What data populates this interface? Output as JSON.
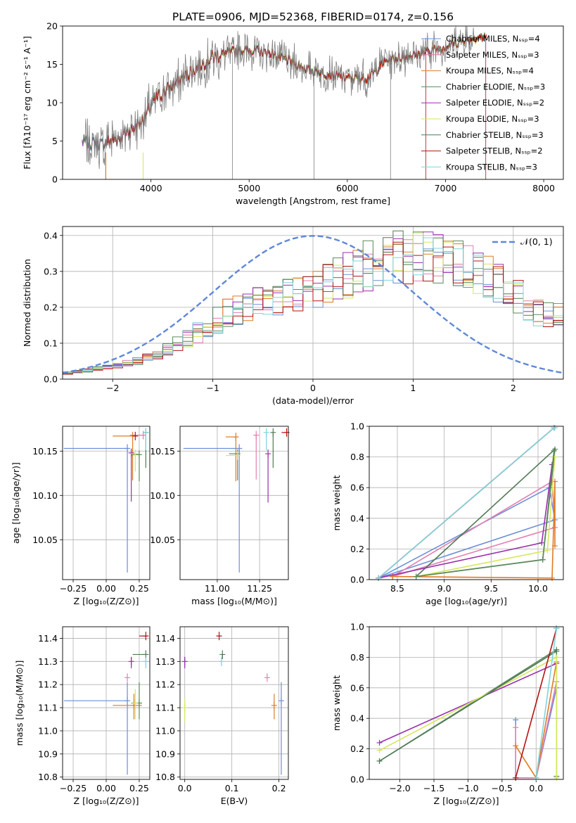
{
  "colors": {
    "blue": "#6a8fd8",
    "orange": "#e07b24",
    "green": "#5b8a5b",
    "purple": "#9b2fae",
    "yellow": "#d4e85a",
    "pink": "#e27fb0",
    "darkgreen": "#4f7a55",
    "red": "#b31414",
    "cyan": "#7fd4dc",
    "data": "#808080",
    "gauss": "#5f88d9",
    "grid": "#b0b0b0"
  },
  "chart_data": [
    {
      "id": "spectrum",
      "type": "line",
      "title": "PLATE=0906, MJD=52368, FIBERID=0174, z=0.156",
      "xlabel": "wavelength [Angstrom, rest frame]",
      "ylabel": "Flux [fλ10⁻¹⁷ erg cm⁻² s⁻¹ A⁻¹]",
      "xlim": [
        3100,
        8200
      ],
      "ylim": [
        0,
        20
      ],
      "xticks": [
        4000,
        5000,
        6000,
        7000,
        8000
      ],
      "yticks": [
        0,
        5,
        10,
        15,
        20
      ],
      "grid": false,
      "legend_position": "right",
      "legend": [
        {
          "label": "Chabrier MILES, Nₛₛₚ=4",
          "color": "#6a8fd8"
        },
        {
          "label": "Salpeter MILES, Nₛₛₚ=3",
          "color": "#e27fb0"
        },
        {
          "label": "Kroupa MILES, Nₛₛₚ=4",
          "color": "#e07b24"
        },
        {
          "label": "Chabrier ELODIE, Nₛₛₚ=3",
          "color": "#5b8a5b"
        },
        {
          "label": "Salpeter ELODIE, Nₛₛₚ=2",
          "color": "#9b2fae"
        },
        {
          "label": "Kroupa ELODIE, Nₛₛₚ=3",
          "color": "#d4e85a"
        },
        {
          "label": "Chabrier STELIB, Nₛₛₚ=3",
          "color": "#4f7a55"
        },
        {
          "label": "Salpeter STELIB, Nₛₛₚ=2",
          "color": "#b31414"
        },
        {
          "label": "Kroupa STELIB, Nₛₛₚ=3",
          "color": "#7fd4dc"
        }
      ],
      "continuum": [
        [
          3300,
          4.9
        ],
        [
          3500,
          4.6
        ],
        [
          3700,
          5.6
        ],
        [
          3900,
          7.5
        ],
        [
          4050,
          10.5
        ],
        [
          4200,
          12
        ],
        [
          4400,
          14
        ],
        [
          4600,
          15.8
        ],
        [
          4800,
          16.6
        ],
        [
          5000,
          16.9
        ],
        [
          5200,
          16.5
        ],
        [
          5400,
          15.5
        ],
        [
          5600,
          14.3
        ],
        [
          5800,
          13.7
        ],
        [
          6000,
          13.2
        ],
        [
          6200,
          13.2
        ],
        [
          6400,
          15.5
        ],
        [
          6600,
          16
        ],
        [
          6800,
          16.6
        ],
        [
          7000,
          17.3
        ],
        [
          7200,
          18.2
        ],
        [
          7400,
          18.6
        ]
      ]
    },
    {
      "id": "residuals",
      "type": "area",
      "xlabel": "(data-model)/error",
      "ylabel": "Normed distribution",
      "xlim": [
        -2.5,
        2.5
      ],
      "ylim": [
        0,
        0.425
      ],
      "xticks": [
        -2,
        -1,
        0,
        1,
        2
      ],
      "yticks": [
        0.0,
        0.1,
        0.2,
        0.3,
        0.4
      ],
      "grid": true,
      "legend_position": "top-right",
      "gauss_label": "𝒩(0, 1)",
      "envelope": [
        [
          -2.5,
          0.015
        ],
        [
          -2.1,
          0.03
        ],
        [
          -1.6,
          0.06
        ],
        [
          -1.2,
          0.12
        ],
        [
          -0.8,
          0.19
        ],
        [
          -0.4,
          0.22
        ],
        [
          0.0,
          0.25
        ],
        [
          0.3,
          0.28
        ],
        [
          0.6,
          0.32
        ],
        [
          0.9,
          0.34
        ],
        [
          1.2,
          0.335
        ],
        [
          1.6,
          0.31
        ],
        [
          2.0,
          0.24
        ],
        [
          2.3,
          0.18
        ],
        [
          2.5,
          0.17
        ]
      ]
    },
    {
      "id": "age-vs-Z",
      "type": "scatter",
      "xlabel": "Z [log₁₀(Z/Z⊙)]",
      "ylabel": "age  [log₁₀(age/yr)]",
      "xlim": [
        -0.33,
        0.33
      ],
      "ylim": [
        10.005,
        10.178
      ],
      "xticks": [
        -0.25,
        0.0,
        0.25
      ],
      "yticks": [
        10.05,
        10.1,
        10.15
      ],
      "grid": true,
      "points": [
        {
          "color": "#6a8fd8",
          "x": 0.16,
          "xerr": [
            0.48,
            0.0
          ],
          "y": 10.153,
          "yerr": [
            0.14,
            0.0
          ]
        },
        {
          "color": "#e27fb0",
          "x": 0.28,
          "xerr": [
            0.1,
            0.0
          ],
          "y": 10.168,
          "yerr": [
            0.0,
            0.0
          ]
        },
        {
          "color": "#e07b24",
          "x": 0.2,
          "xerr": [
            0.15,
            0.0
          ],
          "y": 10.167,
          "yerr": [
            0.05,
            0.0
          ]
        },
        {
          "color": "#5b8a5b",
          "x": 0.25,
          "xerr": [
            0.06,
            0.0
          ],
          "y": 10.146,
          "yerr": [
            0.03,
            0.0
          ]
        },
        {
          "color": "#9b2fae",
          "x": 0.19,
          "xerr": [
            0.0,
            0.0
          ],
          "y": 10.148,
          "yerr": [
            0.055,
            0.0
          ]
        },
        {
          "color": "#d4e85a",
          "x": 0.22,
          "xerr": [
            0.04,
            0.0
          ],
          "y": 10.147,
          "yerr": [
            0.02,
            0.0
          ]
        },
        {
          "color": "#4f7a55",
          "x": 0.3,
          "xerr": [
            0.0,
            0.0
          ],
          "y": 10.171,
          "yerr": [
            0.04,
            0.0
          ]
        },
        {
          "color": "#b31414",
          "x": 0.22,
          "xerr": [
            0.02,
            0.0
          ],
          "y": 10.167,
          "yerr": [
            0.0,
            0.0
          ]
        },
        {
          "color": "#7fd4dc",
          "x": 0.3,
          "xerr": [
            0.0,
            0.0
          ],
          "y": 10.171,
          "yerr": [
            0.02,
            0.0
          ]
        }
      ]
    },
    {
      "id": "age-vs-mass",
      "type": "scatter",
      "xlabel": "mass [log₁₀(M/M⊙)]",
      "xlim": [
        10.78,
        11.42
      ],
      "ylim": [
        10.005,
        10.178
      ],
      "xticks": [
        11.0,
        11.25
      ],
      "yticks": [
        10.05,
        10.1,
        10.15
      ],
      "grid": true,
      "points": [
        {
          "color": "#6a8fd8",
          "x": 11.13,
          "xerr": [
            0.33,
            0.0
          ],
          "y": 10.153,
          "yerr": [
            0.14,
            0.0
          ]
        },
        {
          "color": "#e27fb0",
          "x": 11.23,
          "xerr": [
            0.0,
            0.0
          ],
          "y": 10.168,
          "yerr": [
            0.05,
            0.0
          ]
        },
        {
          "color": "#e07b24",
          "x": 11.11,
          "xerr": [
            0.06,
            0.0
          ],
          "y": 10.166,
          "yerr": [
            0.05,
            0.0
          ]
        },
        {
          "color": "#5b8a5b",
          "x": 11.12,
          "xerr": [
            0.05,
            0.0
          ],
          "y": 10.147,
          "yerr": [
            0.03,
            0.0
          ]
        },
        {
          "color": "#9b2fae",
          "x": 11.3,
          "xerr": [
            0.0,
            0.0
          ],
          "y": 10.147,
          "yerr": [
            0.055,
            0.0
          ]
        },
        {
          "color": "#d4e85a",
          "x": 11.12,
          "xerr": [
            0.07,
            0.0
          ],
          "y": 10.145,
          "yerr": [
            0.0,
            0.0
          ]
        },
        {
          "color": "#4f7a55",
          "x": 11.33,
          "xerr": [
            0.0,
            0.0
          ],
          "y": 10.171,
          "yerr": [
            0.04,
            0.0
          ]
        },
        {
          "color": "#b31414",
          "x": 11.41,
          "xerr": [
            0.03,
            0.0
          ],
          "y": 10.171,
          "yerr": [
            0.0,
            0.0
          ]
        },
        {
          "color": "#7fd4dc",
          "x": 11.29,
          "xerr": [
            0.0,
            0.0
          ],
          "y": 10.171,
          "yerr": [
            0.02,
            0.0
          ]
        }
      ]
    },
    {
      "id": "weight-vs-age",
      "type": "line",
      "xlabel": "age  [log₁₀(age/yr)]",
      "ylabel": "mass weight",
      "xlim": [
        8.2,
        10.27
      ],
      "ylim": [
        0,
        1.0
      ],
      "xticks": [
        8.5,
        9.0,
        9.5,
        10.0
      ],
      "yticks": [
        0.0,
        0.2,
        0.4,
        0.6,
        0.8,
        1.0
      ],
      "grid": true,
      "series": [
        {
          "color": "#6a8fd8",
          "points": [
            [
              8.3,
              0.01
            ],
            [
              10.12,
              0.6
            ],
            [
              10.18,
              0.39
            ],
            [
              8.3,
              0.01
            ]
          ]
        },
        {
          "color": "#e27fb0",
          "points": [
            [
              8.45,
              0.02
            ],
            [
              10.15,
              0.64
            ],
            [
              10.18,
              0.34
            ],
            [
              8.45,
              0.02
            ]
          ]
        },
        {
          "color": "#e07b24",
          "points": [
            [
              8.45,
              0.02
            ],
            [
              10.15,
              0.01
            ],
            [
              10.18,
              0.64
            ],
            [
              10.18,
              0.22
            ]
          ]
        },
        {
          "color": "#4f7a55",
          "points": [
            [
              8.7,
              0.02
            ],
            [
              10.05,
              0.13
            ],
            [
              10.18,
              0.85
            ],
            [
              8.7,
              0.02
            ]
          ]
        },
        {
          "color": "#9b2fae",
          "points": [
            [
              8.3,
              0.01
            ],
            [
              10.04,
              0.24
            ],
            [
              10.15,
              0.75
            ]
          ]
        },
        {
          "color": "#d4e85a",
          "points": [
            [
              8.7,
              0.02
            ],
            [
              10.1,
              0.19
            ],
            [
              10.18,
              0.8
            ]
          ]
        },
        {
          "color": "#5b8a5b",
          "points": [
            [
              8.7,
              0.02
            ],
            [
              10.05,
              0.13
            ],
            [
              10.17,
              0.84
            ]
          ]
        },
        {
          "color": "#b31414",
          "points": [
            [
              8.3,
              0.01
            ],
            [
              10.17,
              0.99
            ]
          ]
        },
        {
          "color": "#7fd4dc",
          "points": [
            [
              8.3,
              0.01
            ],
            [
              10.17,
              0.99
            ],
            [
              10.18,
              0.99
            ]
          ]
        }
      ]
    },
    {
      "id": "mass-vs-Z",
      "type": "scatter",
      "xlabel": "Z [log₁₀(Z/Z⊙)]",
      "ylabel": "mass [log₁₀(M/M⊙)]",
      "xlim": [
        -0.33,
        0.33
      ],
      "ylim": [
        10.79,
        11.45
      ],
      "xticks": [
        -0.25,
        0.0,
        0.25
      ],
      "yticks": [
        10.8,
        10.9,
        11.0,
        11.1,
        11.2,
        11.3,
        11.4
      ],
      "grid": true,
      "points": [
        {
          "color": "#6a8fd8",
          "x": 0.16,
          "xerr": [
            0.48,
            0.0
          ],
          "y": 11.13,
          "yerr": [
            0.32,
            0.08
          ]
        },
        {
          "color": "#e27fb0",
          "x": 0.16,
          "xerr": [
            0.0,
            0.0
          ],
          "y": 11.23,
          "yerr": [
            0.0,
            0.0
          ]
        },
        {
          "color": "#e07b24",
          "x": 0.21,
          "xerr": [
            0.16,
            0.06
          ],
          "y": 11.11,
          "yerr": [
            0.06,
            0.05
          ]
        },
        {
          "color": "#5b8a5b",
          "x": 0.25,
          "xerr": [
            0.06,
            0.0
          ],
          "y": 11.12,
          "yerr": [
            0.07,
            0.09
          ]
        },
        {
          "color": "#9b2fae",
          "x": 0.19,
          "xerr": [
            0.0,
            0.0
          ],
          "y": 11.3,
          "yerr": [
            0.03,
            0.02
          ]
        },
        {
          "color": "#d4e85a",
          "x": 0.22,
          "xerr": [
            0.0,
            0.0
          ],
          "y": 11.12,
          "yerr": [
            0.07,
            0.06
          ]
        },
        {
          "color": "#4f7a55",
          "x": 0.3,
          "xerr": [
            0.1,
            0.0
          ],
          "y": 11.33,
          "yerr": [
            0.0,
            0.0
          ]
        },
        {
          "color": "#b31414",
          "x": 0.3,
          "xerr": [
            0.05,
            0.0
          ],
          "y": 11.41,
          "yerr": [
            0.0,
            0.0
          ]
        },
        {
          "color": "#7fd4dc",
          "x": 0.3,
          "xerr": [
            0.0,
            0.0
          ],
          "y": 11.3,
          "yerr": [
            0.03,
            0.0
          ]
        }
      ]
    },
    {
      "id": "mass-vs-ebv",
      "type": "scatter",
      "xlabel": "E(B-V)",
      "xlim": [
        -0.01,
        0.22
      ],
      "ylim": [
        10.79,
        11.45
      ],
      "xticks": [
        0.0,
        0.1,
        0.2
      ],
      "yticks": [
        10.8,
        10.9,
        11.0,
        11.1,
        11.2,
        11.3,
        11.4
      ],
      "grid": true,
      "points": [
        {
          "color": "#6a8fd8",
          "x": 0.205,
          "y": 11.13,
          "yerr": [
            0.32,
            0.08
          ]
        },
        {
          "color": "#e27fb0",
          "x": 0.175,
          "y": 11.23,
          "yerr": [
            0.0,
            0.0
          ]
        },
        {
          "color": "#e07b24",
          "x": 0.19,
          "y": 11.11,
          "yerr": [
            0.06,
            0.05
          ]
        },
        {
          "color": "#9b2fae",
          "x": 0.0,
          "y": 11.3,
          "yerr": [
            0.03,
            0.02
          ]
        },
        {
          "color": "#d4e85a",
          "x": 0.0,
          "y": 11.1,
          "yerr": [
            0.06,
            0.04
          ]
        },
        {
          "color": "#4f7a55",
          "x": 0.08,
          "y": 11.33,
          "yerr": [
            0.02,
            0.0
          ]
        },
        {
          "color": "#b31414",
          "x": 0.073,
          "y": 11.41,
          "yerr": [
            0.0,
            0.0
          ]
        },
        {
          "color": "#7fd4dc",
          "x": 0.078,
          "y": 11.3,
          "yerr": [
            0.02,
            0.0
          ]
        }
      ]
    },
    {
      "id": "weight-vs-Z",
      "type": "line",
      "xlabel": "Z [log₁₀(Z/Z⊙)]",
      "ylabel": "mass weight",
      "xlim": [
        -2.45,
        0.4
      ],
      "ylim": [
        0,
        1.0
      ],
      "xticks": [
        -2.0,
        -1.5,
        -1.0,
        -0.5,
        0.0
      ],
      "yticks": [
        0.0,
        0.2,
        0.4,
        0.6,
        0.8,
        1.0
      ],
      "grid": true,
      "series": [
        {
          "color": "#6a8fd8",
          "points": [
            [
              -0.3,
              0.39
            ],
            [
              -0.3,
              0.01
            ],
            [
              0.0,
              0.01
            ],
            [
              0.3,
              0.6
            ]
          ]
        },
        {
          "color": "#e27fb0",
          "points": [
            [
              -0.3,
              0.34
            ],
            [
              -0.3,
              0.01
            ],
            [
              0.0,
              0.01
            ],
            [
              0.3,
              0.64
            ]
          ]
        },
        {
          "color": "#e07b24",
          "points": [
            [
              -0.3,
              0.22
            ],
            [
              0.0,
              0.01
            ],
            [
              0.3,
              0.77
            ]
          ]
        },
        {
          "color": "#5b8a5b",
          "points": [
            [
              -2.3,
              0.12
            ],
            [
              0.3,
              0.85
            ],
            [
              0.3,
              0.02
            ]
          ]
        },
        {
          "color": "#9b2fae",
          "points": [
            [
              -2.3,
              0.24
            ],
            [
              0.3,
              0.76
            ]
          ]
        },
        {
          "color": "#d4e85a",
          "points": [
            [
              -2.3,
              0.19
            ],
            [
              0.3,
              0.8
            ],
            [
              0.3,
              0.01
            ]
          ]
        },
        {
          "color": "#4f7a55",
          "points": [
            [
              -2.3,
              0.12
            ],
            [
              0.3,
              0.84
            ]
          ]
        },
        {
          "color": "#b31414",
          "points": [
            [
              -0.3,
              0.01
            ],
            [
              0.3,
              0.99
            ]
          ]
        },
        {
          "color": "#7fd4dc",
          "points": [
            [
              0.0,
              0.01
            ],
            [
              0.3,
              0.99
            ]
          ]
        }
      ]
    }
  ]
}
